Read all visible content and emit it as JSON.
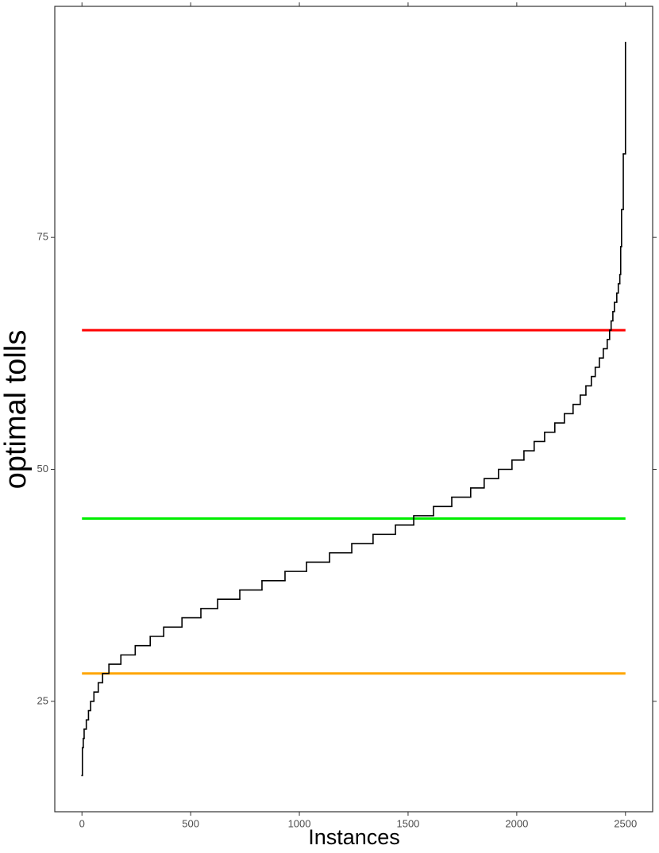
{
  "chart_data": {
    "type": "line",
    "step": "post",
    "x_label": "Instances",
    "y_label": "optimal tolls",
    "x": [
      0,
      2,
      6,
      10,
      20,
      30,
      40,
      55,
      75,
      95,
      124,
      179,
      245,
      314,
      376,
      460,
      547,
      624,
      726,
      828,
      934,
      1033,
      1139,
      1241,
      1339,
      1442,
      1526,
      1617,
      1701,
      1788,
      1850,
      1916,
      1978,
      2033,
      2080,
      2128,
      2175,
      2219,
      2259,
      2292,
      2318,
      2343,
      2361,
      2380,
      2398,
      2416,
      2427,
      2434,
      2442,
      2449,
      2460,
      2467,
      2474,
      2478,
      2482,
      2490,
      2500
    ],
    "values": [
      17,
      20,
      21,
      22,
      23,
      24,
      25,
      26,
      27,
      28,
      29,
      30,
      31,
      32,
      33,
      34,
      35,
      36,
      37,
      38,
      39,
      40,
      41,
      42,
      43,
      44,
      45,
      46,
      47,
      48,
      49,
      50,
      51,
      52,
      53,
      54,
      55,
      56,
      57,
      58,
      59,
      60,
      61,
      62,
      63,
      64,
      65,
      66,
      67,
      68,
      69,
      70,
      71,
      74,
      78,
      84,
      96
    ],
    "color": "#000000",
    "hlines": [
      {
        "value": 65,
        "color": "#ff0000"
      },
      {
        "value": 44.7,
        "color": "#00ee00"
      },
      {
        "value": 28,
        "color": "#ffa500"
      }
    ],
    "xlim": [
      -125,
      2625
    ],
    "ylim": [
      13.1,
      99.9
    ],
    "xticks": [
      0,
      500,
      1000,
      1500,
      2000,
      2500
    ],
    "yticks": [
      25,
      50,
      75
    ]
  }
}
